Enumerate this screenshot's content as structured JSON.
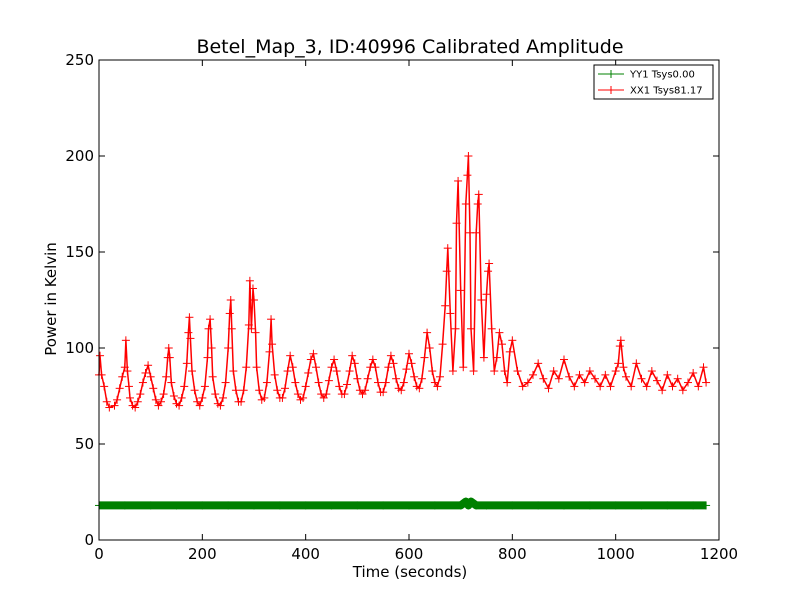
{
  "chart_data": {
    "type": "line",
    "title": "Betel_Map_3, ID:40996 Calibrated Amplitude",
    "xlabel": "Time (seconds)",
    "ylabel": "Power in Kelvin",
    "xlim": [
      0,
      1200
    ],
    "ylim": [
      0,
      250
    ],
    "xticks": [
      "0",
      "200",
      "400",
      "600",
      "800",
      "1000",
      "1200"
    ],
    "yticks": [
      "0",
      "50",
      "100",
      "150",
      "200",
      "250"
    ],
    "grid": false,
    "legend_placement": "top-right",
    "marker": "+",
    "colors": {
      "YY1": "#008000",
      "XX1": "#ff0000"
    },
    "series": [
      {
        "name": "YY1 Tsys0.00",
        "color": "#008000",
        "x": [
          0,
          50,
          100,
          150,
          200,
          250,
          300,
          350,
          400,
          450,
          500,
          550,
          600,
          650,
          700,
          710,
          715,
          720,
          730,
          750,
          800,
          850,
          900,
          950,
          1000,
          1050,
          1100,
          1150,
          1175
        ],
        "y": [
          18,
          18,
          18,
          18,
          18,
          18,
          18,
          18,
          18,
          18,
          18,
          18,
          18,
          18,
          18,
          20,
          18,
          20,
          18,
          18,
          18,
          18,
          18,
          18,
          18,
          18,
          18,
          18,
          18
        ]
      },
      {
        "name": "XX1 Tsys81.17",
        "color": "#ff0000",
        "x": [
          0,
          2,
          5,
          10,
          15,
          20,
          30,
          35,
          40,
          45,
          50,
          52,
          55,
          58,
          60,
          65,
          70,
          75,
          80,
          85,
          90,
          95,
          100,
          105,
          110,
          115,
          120,
          125,
          130,
          133,
          135,
          137,
          140,
          145,
          150,
          155,
          160,
          165,
          170,
          173,
          175,
          177,
          180,
          185,
          190,
          195,
          200,
          205,
          210,
          212,
          215,
          218,
          220,
          225,
          230,
          235,
          240,
          245,
          250,
          253,
          255,
          257,
          260,
          265,
          270,
          275,
          280,
          285,
          290,
          292,
          295,
          298,
          300,
          303,
          305,
          310,
          315,
          320,
          325,
          330,
          333,
          335,
          340,
          345,
          350,
          355,
          360,
          365,
          370,
          375,
          380,
          385,
          390,
          395,
          400,
          405,
          410,
          415,
          420,
          425,
          430,
          435,
          440,
          445,
          450,
          455,
          460,
          465,
          470,
          475,
          480,
          485,
          490,
          495,
          500,
          505,
          510,
          515,
          520,
          525,
          530,
          535,
          540,
          545,
          550,
          555,
          560,
          565,
          570,
          575,
          580,
          585,
          590,
          595,
          600,
          605,
          610,
          615,
          620,
          625,
          630,
          635,
          640,
          645,
          650,
          655,
          660,
          665,
          670,
          673,
          675,
          680,
          685,
          690,
          692,
          695,
          700,
          705,
          710,
          713,
          715,
          718,
          720,
          725,
          730,
          733,
          735,
          740,
          745,
          750,
          753,
          755,
          760,
          765,
          770,
          775,
          780,
          785,
          790,
          795,
          800,
          810,
          820,
          830,
          840,
          850,
          860,
          870,
          880,
          890,
          900,
          910,
          920,
          930,
          940,
          950,
          960,
          970,
          980,
          990,
          1000,
          1005,
          1008,
          1010,
          1015,
          1020,
          1030,
          1040,
          1050,
          1060,
          1070,
          1080,
          1090,
          1100,
          1110,
          1120,
          1130,
          1140,
          1150,
          1160,
          1170,
          1175
        ],
        "y": [
          86,
          96,
          86,
          80,
          72,
          69,
          70,
          73,
          79,
          85,
          90,
          104,
          88,
          80,
          74,
          70,
          69,
          72,
          76,
          82,
          87,
          91,
          85,
          79,
          73,
          70,
          72,
          76,
          85,
          95,
          100,
          95,
          82,
          75,
          71,
          70,
          74,
          80,
          92,
          108,
          116,
          105,
          88,
          78,
          72,
          70,
          74,
          80,
          95,
          110,
          115,
          100,
          85,
          76,
          71,
          70,
          74,
          82,
          100,
          118,
          125,
          110,
          88,
          78,
          72,
          72,
          78,
          90,
          112,
          135,
          110,
          131,
          125,
          108,
          90,
          78,
          73,
          74,
          82,
          98,
          115,
          102,
          86,
          78,
          74,
          74,
          79,
          88,
          96,
          90,
          82,
          76,
          73,
          74,
          80,
          87,
          94,
          97,
          90,
          82,
          76,
          74,
          76,
          83,
          90,
          94,
          88,
          80,
          76,
          76,
          81,
          88,
          96,
          92,
          84,
          78,
          76,
          78,
          84,
          90,
          94,
          90,
          82,
          77,
          77,
          82,
          90,
          96,
          92,
          84,
          79,
          78,
          82,
          89,
          97,
          92,
          85,
          80,
          79,
          84,
          95,
          108,
          100,
          88,
          82,
          80,
          85,
          102,
          122,
          140,
          152,
          118,
          88,
          110,
          165,
          187,
          130,
          90,
          175,
          190,
          200,
          160,
          110,
          88,
          160,
          175,
          180,
          125,
          95,
          128,
          140,
          144,
          110,
          88,
          95,
          108,
          102,
          88,
          82,
          98,
          104,
          88,
          80,
          82,
          86,
          92,
          84,
          79,
          88,
          84,
          94,
          85,
          80,
          86,
          82,
          88,
          84,
          80,
          86,
          80,
          88,
          92,
          101,
          104,
          90,
          85,
          80,
          92,
          84,
          80,
          88,
          83,
          78,
          86,
          80,
          84,
          78,
          82,
          87,
          80,
          90,
          82
        ]
      }
    ]
  }
}
